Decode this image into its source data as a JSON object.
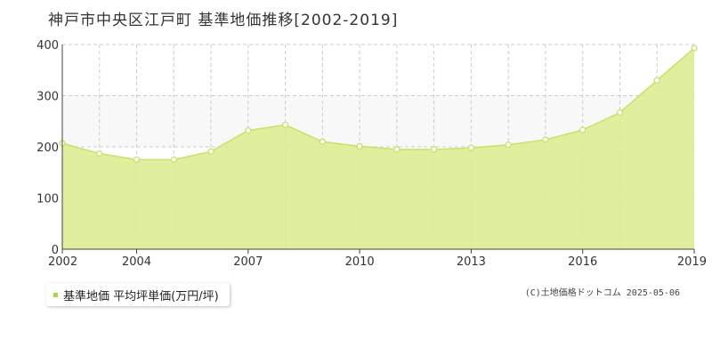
{
  "title": "神戸市中央区江戸町 基準地価推移[2002-2019]",
  "legend": {
    "label": "基準地価 平均坪単価(万円/坪)"
  },
  "copyright": "(C)土地価格ドットコム 2025-05-06",
  "colors": {
    "fill": "#dced93",
    "line": "#c6e26a",
    "swatch": "#a8d63c",
    "grid": "#cccccc",
    "band": "#f8f8f8"
  },
  "chart_data": {
    "type": "area",
    "x": [
      2002,
      2003,
      2004,
      2005,
      2006,
      2007,
      2008,
      2009,
      2010,
      2011,
      2012,
      2013,
      2014,
      2015,
      2016,
      2017,
      2018,
      2019
    ],
    "series": [
      {
        "name": "基準地価 平均坪単価(万円/坪)",
        "values": [
          207,
          187,
          175,
          175,
          191,
          232,
          243,
          210,
          201,
          195,
          195,
          198,
          204,
          214,
          233,
          267,
          330,
          393
        ]
      }
    ],
    "xticks": [
      "2002",
      "2004",
      "2007",
      "2010",
      "2013",
      "2016",
      "2019"
    ],
    "yticks": [
      "0",
      "100",
      "200",
      "300",
      "400"
    ],
    "xlim": [
      2002,
      2019
    ],
    "ylim": [
      0,
      400
    ],
    "grid": true
  }
}
